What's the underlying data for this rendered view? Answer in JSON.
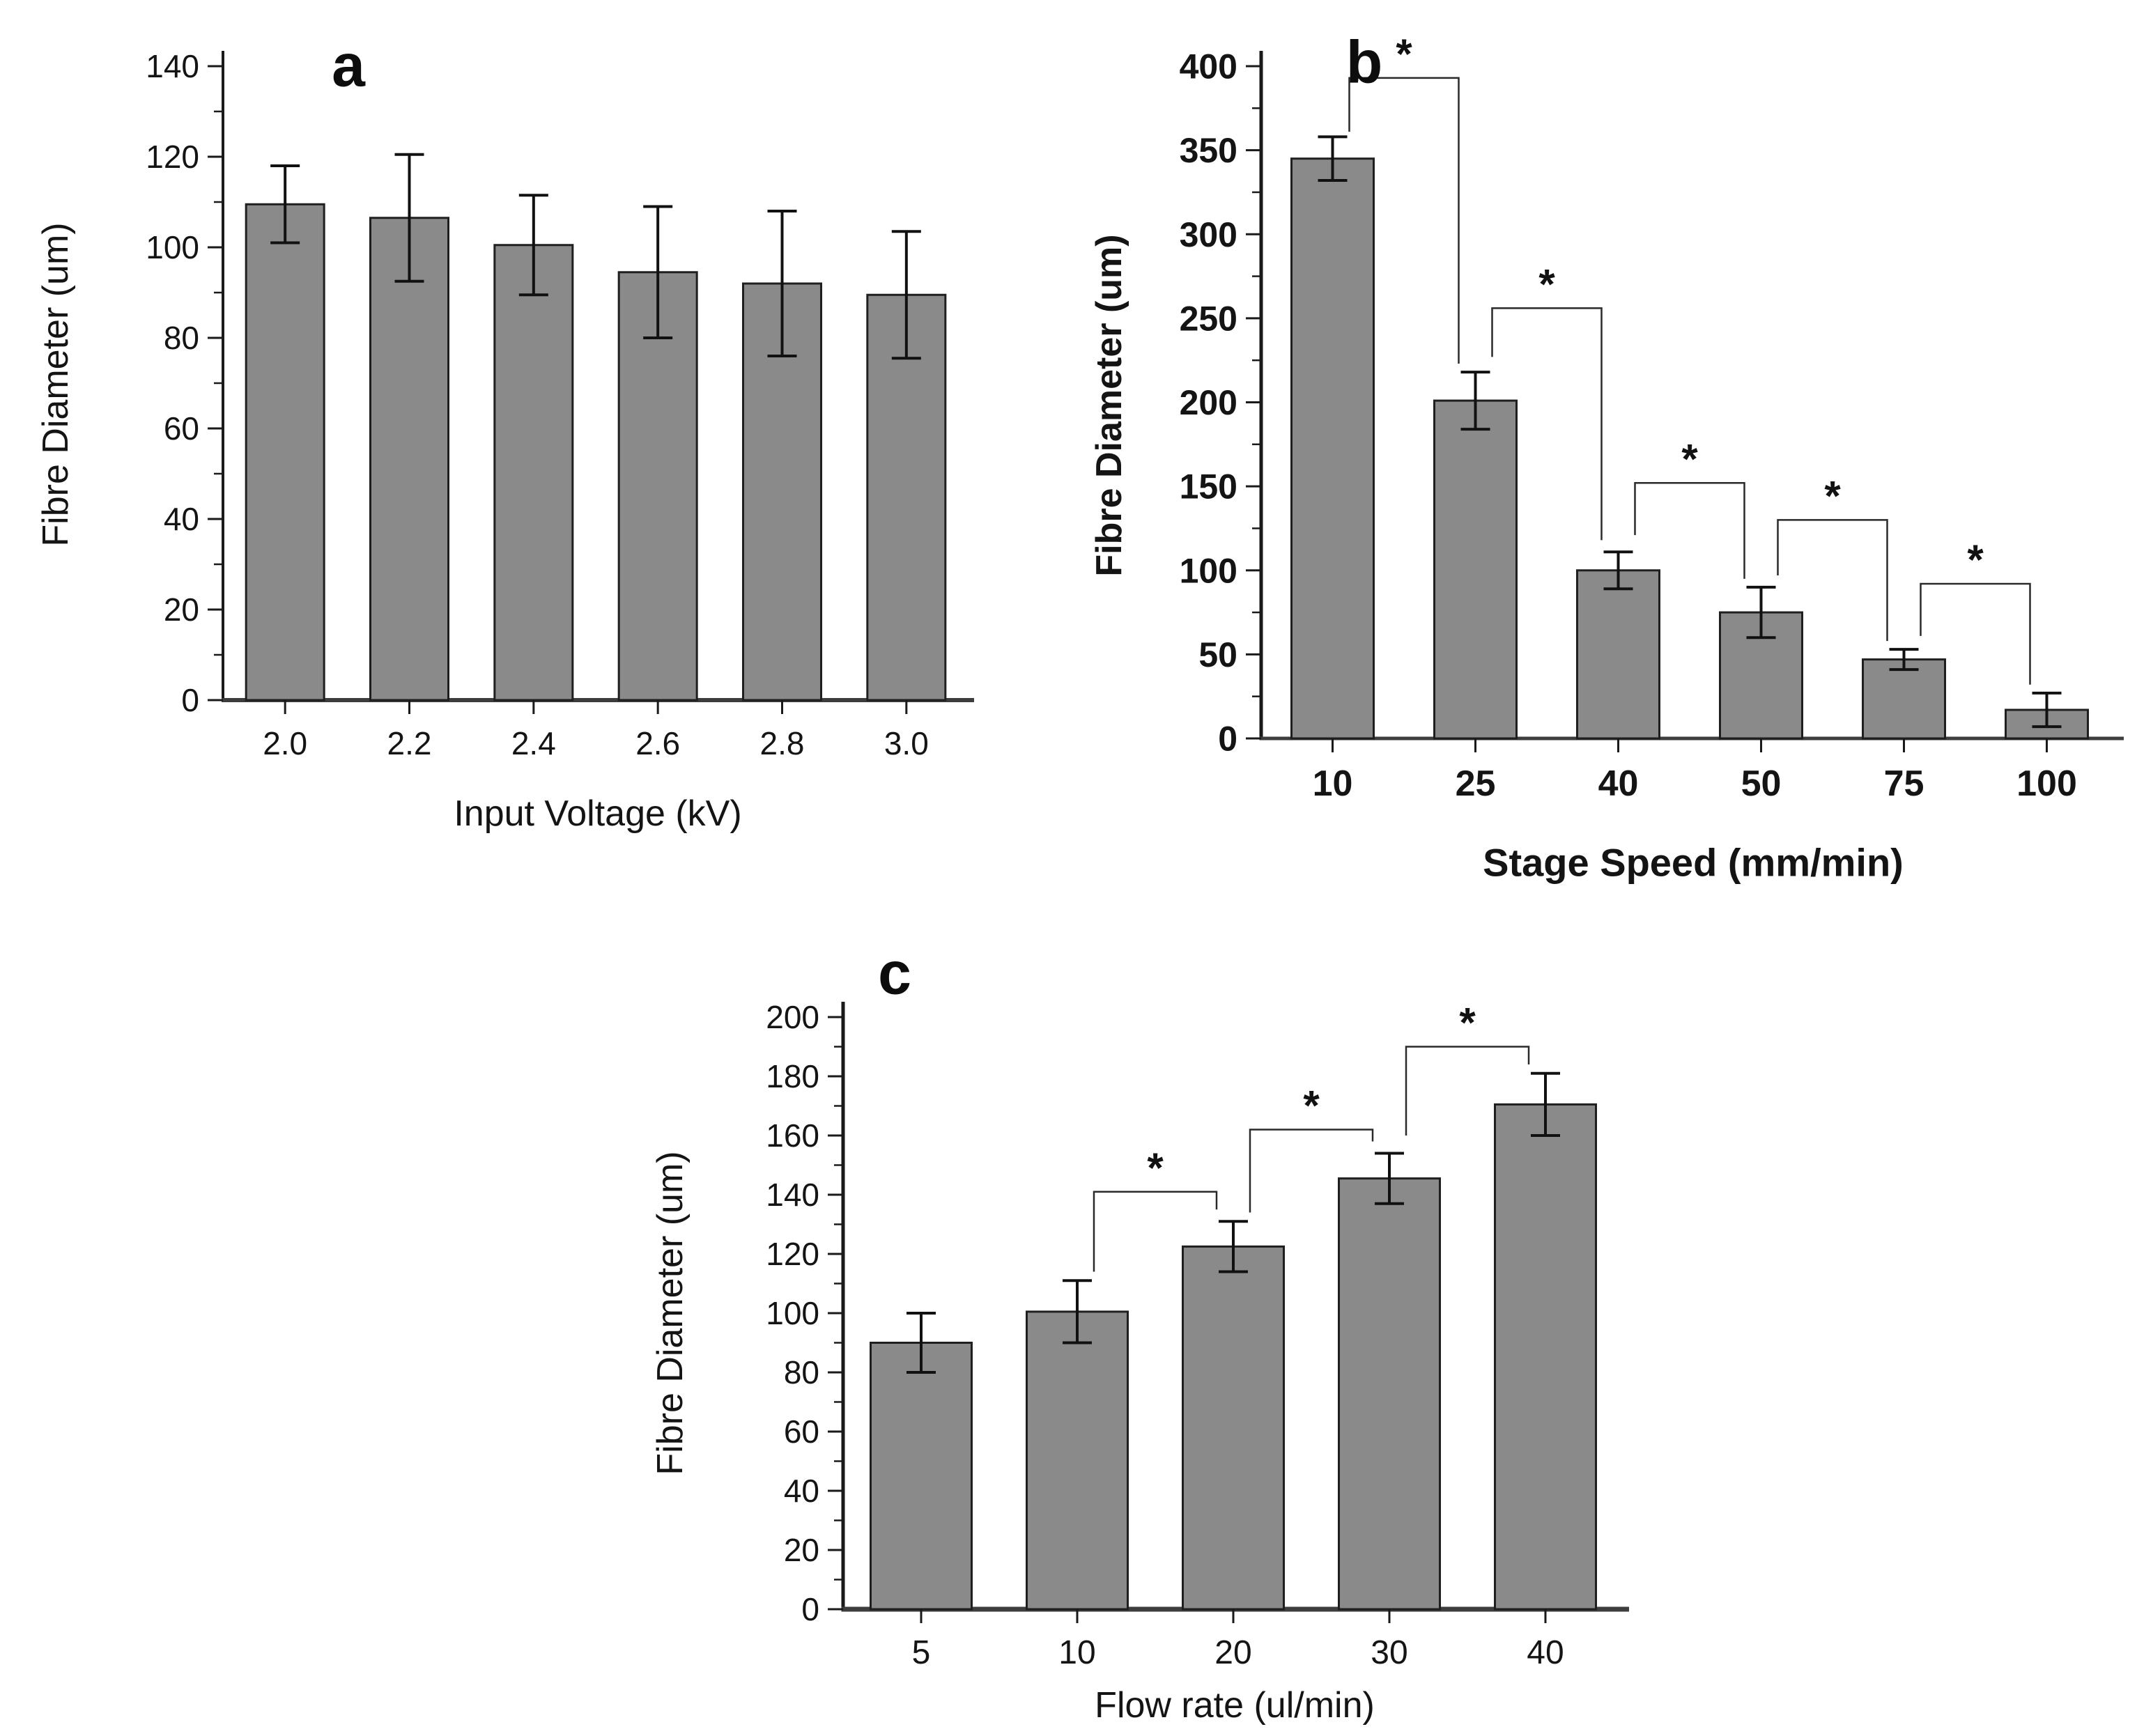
{
  "figure": {
    "background": "#ffffff",
    "significance_marker": "*",
    "bar_fill": "#8a8a8a",
    "bar_stroke": "#1f1f1f",
    "axis_color": "#1a1a1a",
    "text_color": "#141414"
  },
  "chart_data": [
    {
      "type": "bar",
      "panel_label": "a",
      "title": "",
      "xlabel": "Input Voltage (kV)",
      "ylabel": "Fibre Diameter (um)",
      "categories": [
        "2.0",
        "2.2",
        "2.4",
        "2.6",
        "2.8",
        "3.0"
      ],
      "values": [
        109.5,
        106.5,
        100.5,
        94.5,
        92,
        89.5
      ],
      "errors": [
        8.5,
        14,
        11,
        14.5,
        16,
        14
      ],
      "ylim": [
        0,
        140
      ],
      "ytick_step": 20,
      "yminor_step": 10,
      "grid": false,
      "legend": "none",
      "brackets": []
    },
    {
      "type": "bar",
      "panel_label": "b",
      "title": "",
      "xlabel": "Stage Speed (mm/min)",
      "ylabel": "Fibre Diameter (um)",
      "categories": [
        "10",
        "25",
        "40",
        "50",
        "75",
        "100"
      ],
      "values": [
        345,
        201,
        100,
        75,
        47,
        17
      ],
      "errors": [
        13,
        17,
        11,
        15,
        6,
        10
      ],
      "ylim": [
        0,
        400
      ],
      "ytick_step": 50,
      "yminor_step": 25,
      "grid": false,
      "legend": "none",
      "brackets": [
        {
          "from": 0,
          "to": 1,
          "top": 393,
          "left_bottom": 361,
          "right_bottom": 223,
          "label": "*"
        },
        {
          "from": 1,
          "to": 2,
          "top": 256,
          "left_bottom": 227,
          "right_bottom": 118,
          "label": "*"
        },
        {
          "from": 2,
          "to": 3,
          "top": 152,
          "left_bottom": 121,
          "right_bottom": 95,
          "label": "*"
        },
        {
          "from": 3,
          "to": 4,
          "top": 130,
          "left_bottom": 97,
          "right_bottom": 58,
          "label": "*"
        },
        {
          "from": 4,
          "to": 5,
          "top": 92,
          "left_bottom": 61,
          "right_bottom": 32,
          "label": "*"
        }
      ]
    },
    {
      "type": "bar",
      "panel_label": "c",
      "title": "",
      "xlabel": "Flow rate (ul/min)",
      "ylabel": "Fibre Diameter (um)",
      "categories": [
        "5",
        "10",
        "20",
        "30",
        "40"
      ],
      "values": [
        90,
        100.5,
        122.5,
        145.5,
        170.5
      ],
      "errors": [
        10,
        10.5,
        8.5,
        8.5,
        10.5
      ],
      "ylim": [
        0,
        200
      ],
      "ytick_step": 20,
      "yminor_step": 10,
      "grid": false,
      "legend": "none",
      "brackets": [
        {
          "from": 1,
          "to": 2,
          "top": 141,
          "left_bottom": 114,
          "right_bottom": 135,
          "label": "*"
        },
        {
          "from": 2,
          "to": 3,
          "top": 162,
          "left_bottom": 134,
          "right_bottom": 158,
          "label": "*"
        },
        {
          "from": 3,
          "to": 4,
          "top": 190,
          "left_bottom": 160,
          "right_bottom": 184,
          "label": "*"
        }
      ]
    }
  ]
}
